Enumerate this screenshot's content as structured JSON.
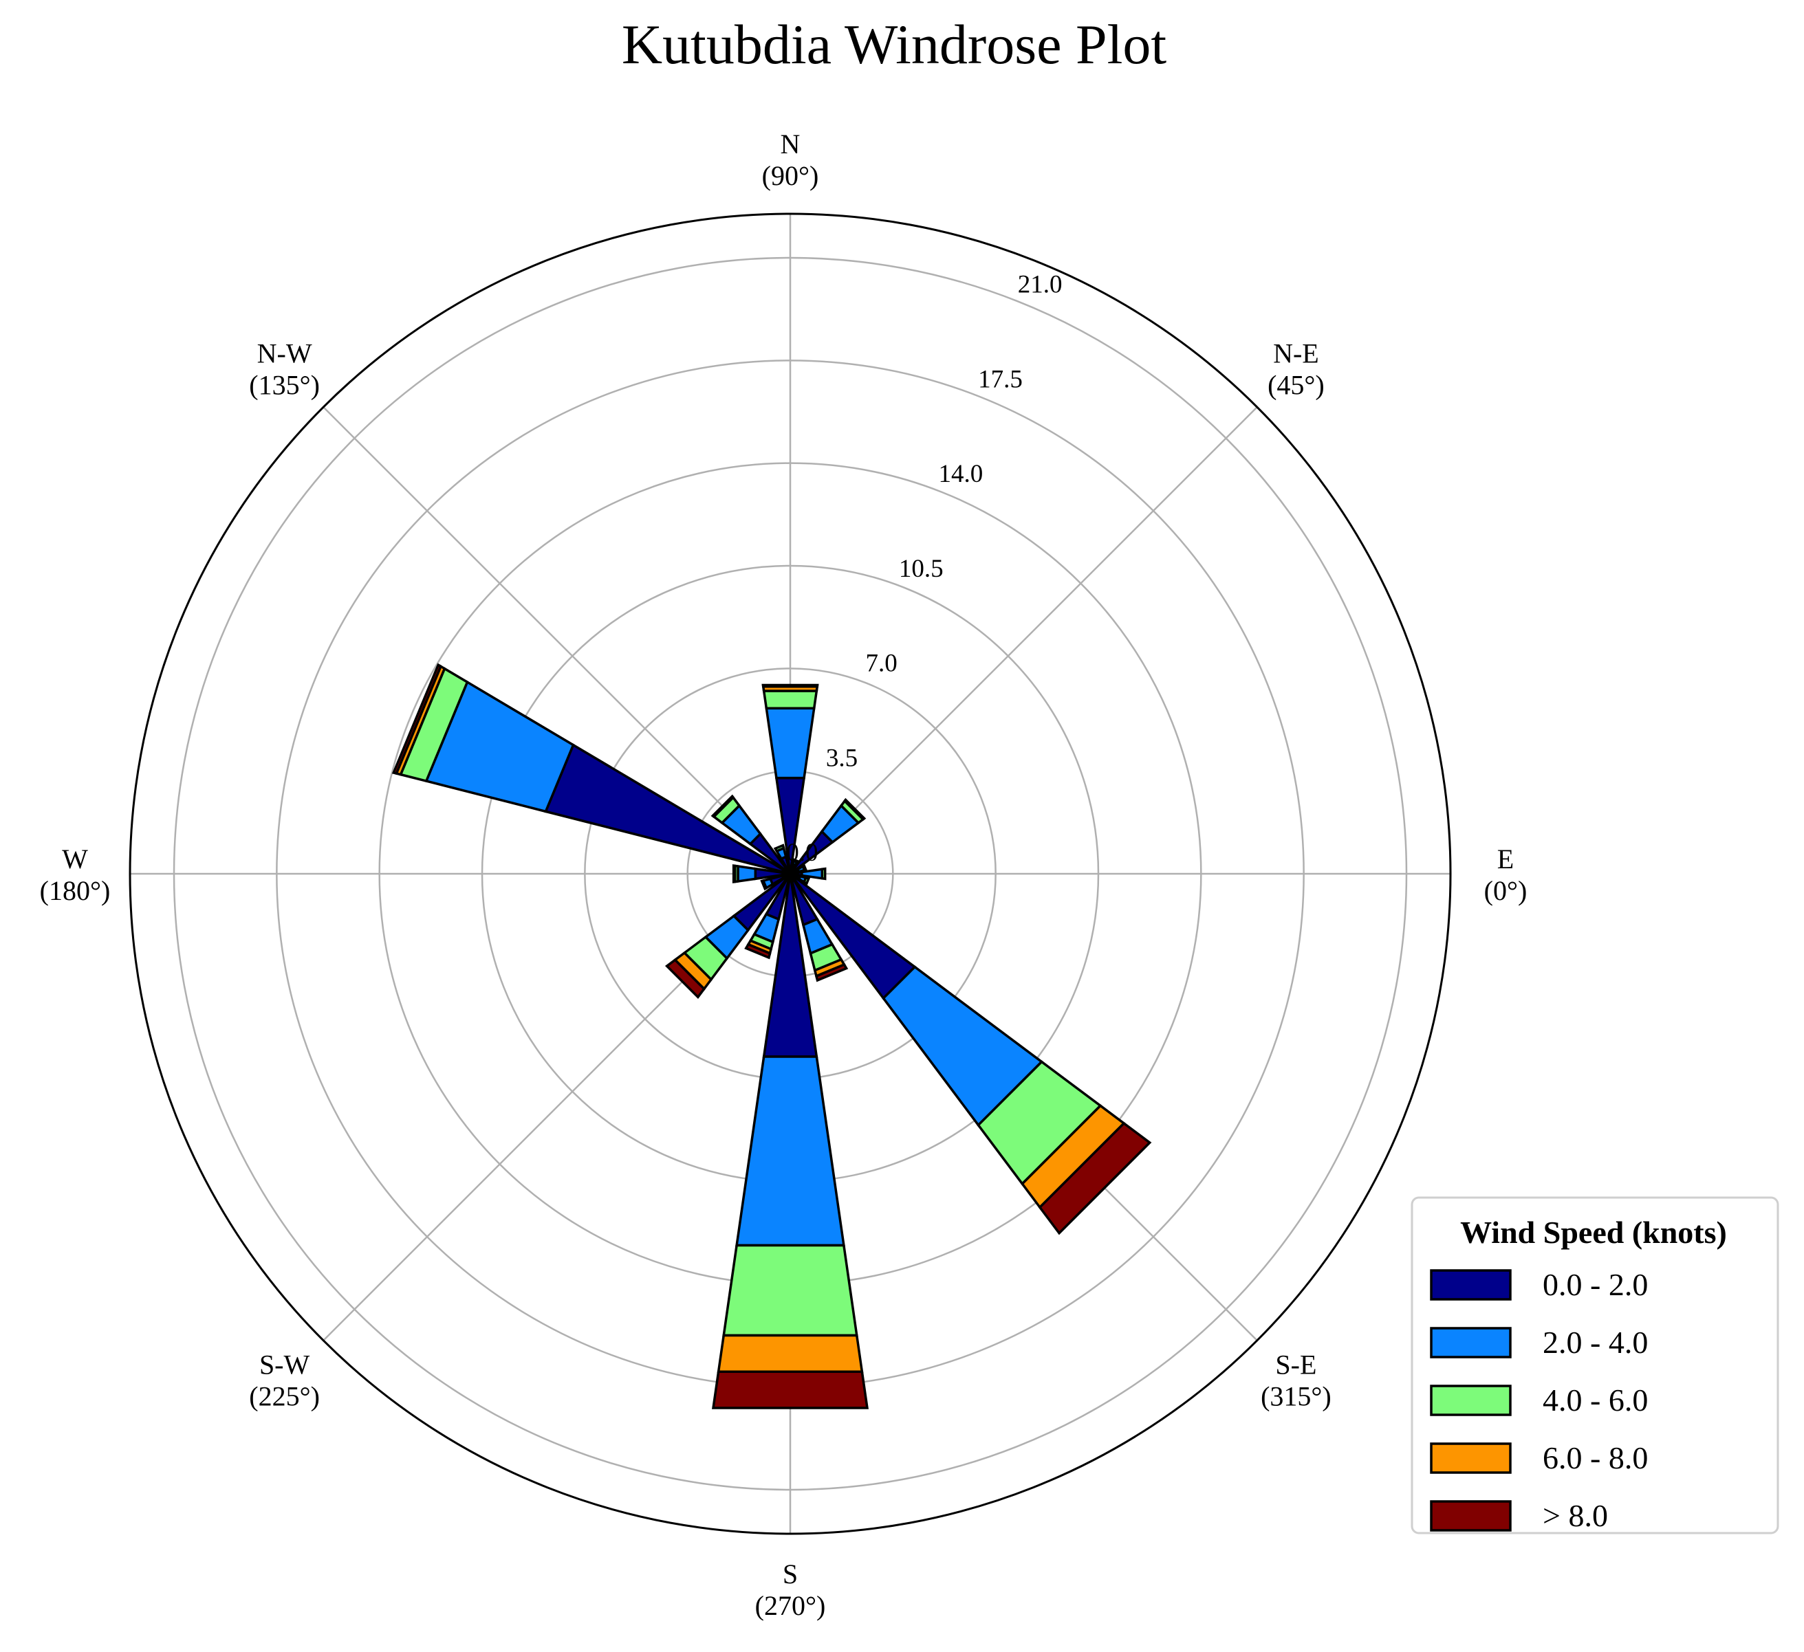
{
  "title": "Kutubdia Windrose Plot",
  "chart_data": {
    "type": "windrose",
    "rlim": [
      0,
      22.5
    ],
    "r_ticks": [
      0.0,
      3.5,
      7.0,
      10.5,
      14.0,
      17.5,
      21.0
    ],
    "r_tick_labels": [
      "0.0",
      "3.5",
      "7.0",
      "10.5",
      "14.0",
      "17.5",
      "21.0"
    ],
    "grid": true,
    "directions": [
      {
        "name": "E",
        "degree_label": "(0°)",
        "angle": 0
      },
      {
        "name": "N-E",
        "degree_label": "(45°)",
        "angle": 45
      },
      {
        "name": "N",
        "degree_label": "(90°)",
        "angle": 90
      },
      {
        "name": "N-W",
        "degree_label": "(135°)",
        "angle": 135
      },
      {
        "name": "W",
        "degree_label": "(180°)",
        "angle": 180
      },
      {
        "name": "S-W",
        "degree_label": "(225°)",
        "angle": 225
      },
      {
        "name": "S",
        "degree_label": "(270°)",
        "angle": 270
      },
      {
        "name": "S-E",
        "degree_label": "(315°)",
        "angle": 315
      }
    ],
    "legend": {
      "title": "Wind Speed (knots)",
      "placement": "lower-right"
    },
    "series": [
      {
        "name": "0.0 - 2.0",
        "color": "#00008b"
      },
      {
        "name": "2.0 - 4.0",
        "color": "#0a84ff"
      },
      {
        "name": "4.0 - 6.0",
        "color": "#7dfb7a"
      },
      {
        "name": "6.0 - 8.0",
        "color": "#fd9500"
      },
      {
        "name": "> 8.0",
        "color": "#800000"
      }
    ],
    "bars": [
      {
        "angle": 0,
        "values": [
          0.4,
          0.7,
          0.1,
          0.0,
          0.0
        ]
      },
      {
        "angle": 22.5,
        "values": [
          0.3,
          0.2,
          0.05,
          0.0,
          0.0
        ]
      },
      {
        "angle": 45,
        "values": [
          1.8,
          1.1,
          0.2,
          0.05,
          0.0
        ]
      },
      {
        "angle": 67.5,
        "values": [
          0.35,
          0.1,
          0.05,
          0.0,
          0.0
        ]
      },
      {
        "angle": 90,
        "values": [
          3.3,
          2.4,
          0.6,
          0.15,
          0.05
        ]
      },
      {
        "angle": 112.5,
        "values": [
          0.6,
          0.3,
          0.1,
          0.0,
          0.0
        ]
      },
      {
        "angle": 135,
        "values": [
          1.7,
          1.2,
          0.35,
          0.05,
          0.0
        ]
      },
      {
        "angle": 157.5,
        "values": [
          8.6,
          4.2,
          0.9,
          0.15,
          0.1
        ]
      },
      {
        "angle": 180,
        "values": [
          1.2,
          0.6,
          0.1,
          0.05,
          0.0
        ]
      },
      {
        "angle": 202.5,
        "values": [
          0.7,
          0.25,
          0.05,
          0.0,
          0.0
        ]
      },
      {
        "angle": 225,
        "values": [
          2.4,
          1.2,
          0.9,
          0.4,
          0.35
        ]
      },
      {
        "angle": 247.5,
        "values": [
          1.6,
          0.8,
          0.25,
          0.15,
          0.15
        ]
      },
      {
        "angle": 270,
        "values": [
          6.3,
          6.5,
          3.1,
          1.25,
          1.25
        ]
      },
      {
        "angle": 292.5,
        "values": [
          1.8,
          1.0,
          0.6,
          0.2,
          0.15
        ]
      },
      {
        "angle": 315,
        "values": [
          5.3,
          5.4,
          2.5,
          1.0,
          1.1
        ]
      },
      {
        "angle": 337.5,
        "values": [
          0.35,
          0.2,
          0.1,
          0.0,
          0.0
        ]
      }
    ]
  }
}
